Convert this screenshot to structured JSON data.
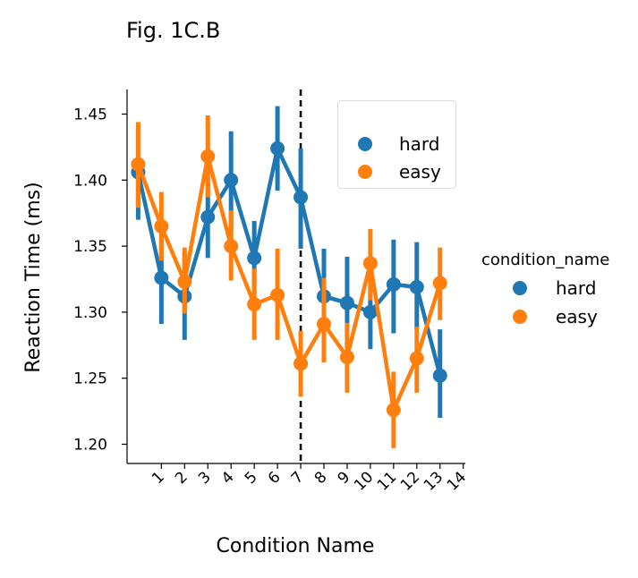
{
  "chart_data": {
    "type": "line",
    "title": "Fig. 1C.B",
    "xlabel": "Condition Name",
    "ylabel": "Reaction Time (ms)",
    "x_tick_labels": [
      "1",
      "2",
      "3",
      "4",
      "5",
      "6",
      "7",
      "8",
      "9",
      "10",
      "11",
      "12",
      "13",
      "14"
    ],
    "y_ticks": [
      1.2,
      1.25,
      1.3,
      1.35,
      1.4,
      1.45
    ],
    "y_tick_labels": [
      "1.20",
      "1.25",
      "1.30",
      "1.35",
      "1.40",
      "1.45"
    ],
    "ylim": [
      1.186,
      1.468
    ],
    "vline": {
      "label": "7",
      "style": "dashed"
    },
    "series": [
      {
        "name": "hard",
        "color": "#1f77b4",
        "values": [
          1.406,
          1.326,
          1.312,
          1.372,
          1.4,
          1.341,
          1.424,
          1.387,
          1.312,
          1.307,
          1.3,
          1.321,
          1.319,
          1.252
        ],
        "ci_low": [
          1.37,
          1.291,
          1.279,
          1.341,
          1.362,
          1.314,
          1.392,
          1.348,
          1.279,
          1.272,
          1.272,
          1.284,
          1.287,
          1.22
        ],
        "ci_high": [
          1.41,
          1.361,
          1.345,
          1.402,
          1.437,
          1.369,
          1.456,
          1.424,
          1.348,
          1.342,
          1.331,
          1.355,
          1.353,
          1.287
        ]
      },
      {
        "name": "easy",
        "color": "#ff7f0e",
        "values": [
          1.412,
          1.365,
          1.323,
          1.418,
          1.35,
          1.306,
          1.313,
          1.261,
          1.291,
          1.266,
          1.337,
          1.226,
          1.265,
          1.322
        ],
        "ci_low": [
          1.379,
          1.339,
          1.299,
          1.387,
          1.324,
          1.279,
          1.279,
          1.236,
          1.262,
          1.239,
          1.309,
          1.197,
          1.239,
          1.294
        ],
        "ci_high": [
          1.444,
          1.391,
          1.349,
          1.449,
          1.377,
          1.333,
          1.348,
          1.286,
          1.326,
          1.292,
          1.363,
          1.255,
          1.289,
          1.349
        ]
      }
    ],
    "legend_inner": {
      "placement": "top-right",
      "entries": [
        "hard",
        "easy"
      ]
    },
    "legend_outer": {
      "title": "condition_name",
      "placement": "right",
      "entries": [
        "hard",
        "easy"
      ]
    }
  }
}
